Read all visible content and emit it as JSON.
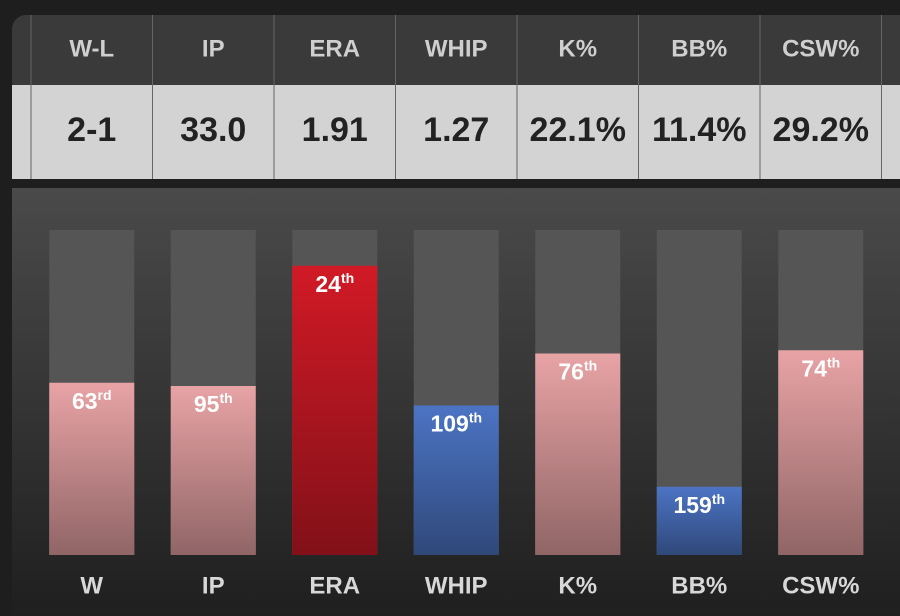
{
  "table": {
    "headers": [
      "W-L",
      "IP",
      "ERA",
      "WHIP",
      "K%",
      "BB%",
      "CSW%"
    ],
    "values": [
      "2-1",
      "33.0",
      "1.91",
      "1.27",
      "22.1%",
      "11.4%",
      "29.2%"
    ]
  },
  "chart_data": {
    "type": "bar",
    "categories": [
      "W",
      "IP",
      "ERA",
      "WHIP",
      "K%",
      "BB%",
      "CSW%"
    ],
    "values": [
      53,
      52,
      89,
      46,
      62,
      21,
      63
    ],
    "ranks": [
      63,
      95,
      24,
      109,
      76,
      159,
      74
    ],
    "rank_suffixes": [
      "rd",
      "th",
      "th",
      "th",
      "th",
      "th",
      "th"
    ],
    "colors": [
      "#e8a3a5",
      "#e8a3a5",
      "#d11a26",
      "#4c74c4",
      "#e8a3a5",
      "#4c74c4",
      "#e8a3a5"
    ],
    "ylim": [
      0,
      100
    ]
  }
}
